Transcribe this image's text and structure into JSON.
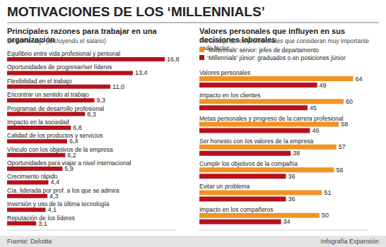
{
  "title": "MOTIVACIONES DE LOS ‘MILLENNIALS’",
  "source": "Fuente: Deloitte",
  "credit": "Infografía Expansión",
  "chart_data": [
    {
      "type": "bar",
      "orientation": "horizontal",
      "title": "Principales razones para trabajar en una organización",
      "subtitle": "En porcentaje (excluyendo el salario)",
      "categories": [
        "Equilibrio entre vida profesional y personal",
        "Oportunidades de progresar/ser líderes",
        "Flexibilidad en el trabajo",
        "Encontrar un sentido al trabajo",
        "Programas de desarrollo profesional",
        "Impacto en la sociedad",
        "Calidad de los productos y servicios",
        "Vínculo con los objetivos de la empresa",
        "Oportunidades para viajar a nivel internacional",
        "Crecimiento rápido",
        "Cía. liderada por prof. a los que se admira",
        "Inversión y uso de la última tecnología",
        "Reputación de los líderes"
      ],
      "values": [
        16.8,
        13.4,
        11.0,
        9.3,
        8.3,
        6.8,
        6.4,
        6.2,
        5.9,
        4.4,
        4.3,
        4.1,
        3.1
      ],
      "value_labels": [
        "16,8",
        "13,4",
        "11,0",
        "9,3",
        "8,3",
        "6,8",
        "6,4",
        "6,2",
        "5,9",
        "4,4",
        "4,3",
        "4,1",
        "3,1"
      ],
      "color": "#b5121b",
      "xlim": [
        0,
        18
      ],
      "data_labels": true,
      "tick_labels": false,
      "grid": false
    },
    {
      "type": "bar",
      "orientation": "horizontal",
      "title": "Valores personales que influyen en sus decisiones laborales",
      "subtitle": "Porcentaje de los profesionales que consideran muy importante cada factor.",
      "categories": [
        "Valores personales",
        "Impacto en los clientes",
        "Metas personales y progreso de la carrera profesional",
        "Ser honesto con los valores de la empresa",
        "Cumplir los objetivos de la compañía",
        "Evitar un problema",
        "Impacto en los compañeros"
      ],
      "series": [
        {
          "name": "‘Millennials’ sénior: jefes de departamento",
          "color": "#f39324",
          "values": [
            64,
            60,
            58,
            57,
            56,
            51,
            50
          ]
        },
        {
          "name": "‘Millennials’ júnior: graduados o en posiciones júnior",
          "color": "#b5121b",
          "values": [
            49,
            45,
            46,
            38,
            36,
            36,
            34
          ]
        }
      ],
      "xlim": [
        0,
        70
      ],
      "data_labels": true,
      "tick_labels": false,
      "legend": "top",
      "grid": false
    }
  ]
}
